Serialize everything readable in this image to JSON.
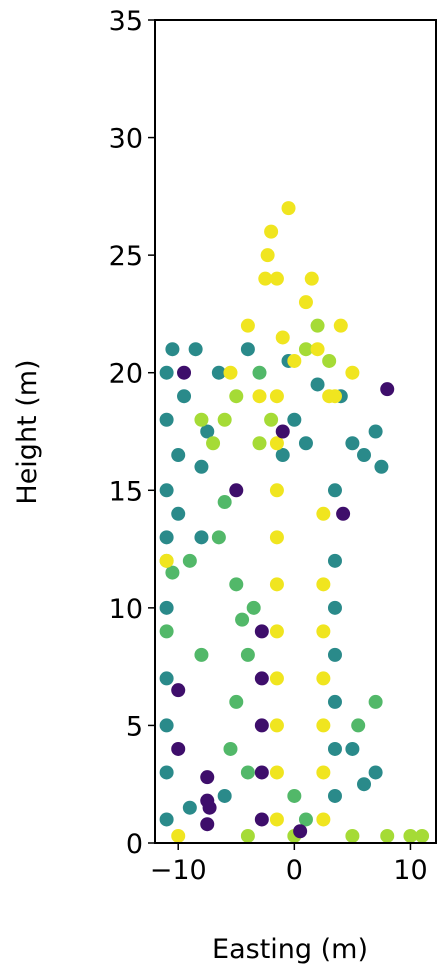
{
  "chart_data": {
    "type": "scatter",
    "x_label": "Easting (m)",
    "y_label": "Height (m)",
    "xlim": [
      -12,
      12.2
    ],
    "ylim": [
      0,
      35
    ],
    "xticks": [
      {
        "value": -10,
        "label": "−10"
      },
      0,
      10
    ],
    "yticks": [
      0,
      5,
      10,
      15,
      20,
      25,
      30,
      35
    ],
    "series": [
      {
        "color": "#2a8a8a",
        "x": [
          3.5,
          3.5,
          3.5,
          3.5,
          3.5,
          3.5,
          3.5,
          -11,
          -11,
          -10.5,
          -9.5,
          -8.5,
          -7.5,
          -6.5,
          -10,
          -8,
          -11,
          -11,
          -11,
          -11,
          5,
          6,
          7,
          7.5,
          4,
          2,
          -0.5,
          0,
          1,
          -4,
          -11,
          -9,
          -6,
          -10,
          -8,
          7,
          6,
          5,
          -11,
          -11,
          -1
        ],
        "values": [
          2,
          4,
          6,
          8,
          10,
          12,
          15,
          20,
          18,
          21,
          19,
          21,
          17.5,
          20,
          16.5,
          16,
          13,
          10,
          7,
          3,
          17,
          16.5,
          17.5,
          16,
          19,
          19.5,
          20.5,
          18,
          17,
          21,
          1,
          1.5,
          2,
          14,
          13,
          3,
          2.5,
          4,
          15,
          5,
          16.5
        ]
      },
      {
        "color": "#52b869",
        "x": [
          -5,
          -4.5,
          -4,
          -3.5,
          -5,
          -4,
          -9,
          -8,
          -6.5,
          -6,
          -10.5,
          -11,
          0,
          1,
          -5.5,
          -3,
          5.5,
          7
        ],
        "values": [
          11,
          9.5,
          8,
          10,
          6,
          3,
          12,
          8,
          13,
          14.5,
          11.5,
          9,
          2,
          1,
          4,
          20,
          5,
          6
        ]
      },
      {
        "color": "#a5db36",
        "x": [
          -5,
          -6,
          -3,
          2,
          3,
          1,
          -2,
          -7,
          -8,
          -11,
          0,
          5,
          8,
          10,
          11,
          -4
        ],
        "values": [
          19,
          18,
          17,
          22,
          20.5,
          21,
          18,
          17,
          18,
          12,
          0.3,
          0.3,
          0.3,
          0.3,
          0.3,
          0.3
        ]
      },
      {
        "color": "#f0e51f",
        "x": [
          -1.5,
          -1.5,
          -1.5,
          -1.5,
          -1.5,
          -1.5,
          -1.5,
          -1.5,
          -1.5,
          -1.5,
          -1.5,
          2.5,
          2.5,
          2.5,
          2.5,
          2.5,
          2.5,
          2.5,
          -2,
          -0.5,
          -2.5,
          1,
          2,
          3,
          4,
          5,
          -3,
          -4,
          0,
          1.5,
          3.5,
          -2.3,
          -1,
          -5.5,
          -11,
          -10
        ],
        "values": [
          1,
          3,
          5,
          7,
          9,
          11,
          13,
          15,
          17,
          19,
          24,
          1,
          3,
          5,
          7,
          9,
          11,
          14,
          26,
          27,
          24,
          23,
          21,
          19,
          22,
          20,
          19,
          22,
          20.5,
          24,
          19,
          25,
          21.5,
          20,
          12,
          0.3
        ]
      },
      {
        "color": "#3e0e6b",
        "x": [
          -7.5,
          -7.5,
          -7.5,
          -7.3,
          -2.8,
          -2.8,
          -2.8,
          -2.8,
          -2.8,
          -10,
          -10,
          -9.5,
          -5,
          8,
          -1,
          4.2,
          0.5
        ],
        "values": [
          0.8,
          1.8,
          2.8,
          1.5,
          1,
          3,
          5,
          7,
          9,
          4,
          6.5,
          20,
          15,
          19.3,
          17.5,
          14,
          0.5
        ]
      }
    ]
  }
}
